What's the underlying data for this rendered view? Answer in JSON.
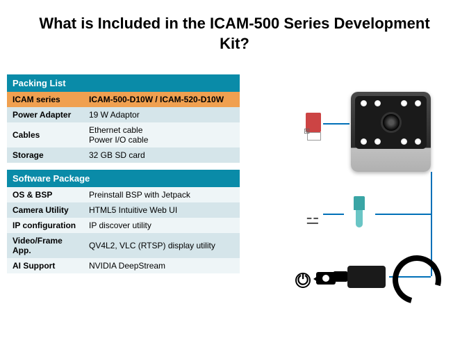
{
  "title": "What is Included in the ICAM-500 Series Development Kit?",
  "colors": {
    "section_header_bg": "#0a8ba8",
    "section_header_text": "#ffffff",
    "highlight_bg": "#f0a050",
    "row_alt1": "#d5e5ea",
    "row_alt2": "#eef5f7",
    "connector_line": "#0070b8"
  },
  "packing": {
    "header": "Packing List",
    "rows": [
      {
        "label": "ICAM series",
        "value": "ICAM-500-D10W  / ICAM-520-D10W",
        "highlight": true
      },
      {
        "label": "Power Adapter",
        "value": "19 W Adaptor"
      },
      {
        "label": "Cables",
        "value": "Ethernet cable\nPower I/O cable"
      },
      {
        "label": "Storage",
        "value": "32 GB SD card"
      }
    ]
  },
  "software": {
    "header": "Software Package",
    "rows": [
      {
        "label": "OS & BSP",
        "value": "Preinstall BSP with Jetpack"
      },
      {
        "label": "Camera Utility",
        "value": "HTML5 Intuitive Web UI"
      },
      {
        "label": "IP configuration",
        "value": "IP discover utility"
      },
      {
        "label": "Video/Frame App.",
        "value": "QV4L2, VLC (RTSP) display utility"
      },
      {
        "label": "AI Support",
        "value": "NVIDIA DeepStream"
      }
    ]
  },
  "diagram": {
    "items": [
      "camera",
      "sd-card",
      "ethernet-cable",
      "io-cable",
      "power-adapter",
      "power-cable"
    ]
  }
}
